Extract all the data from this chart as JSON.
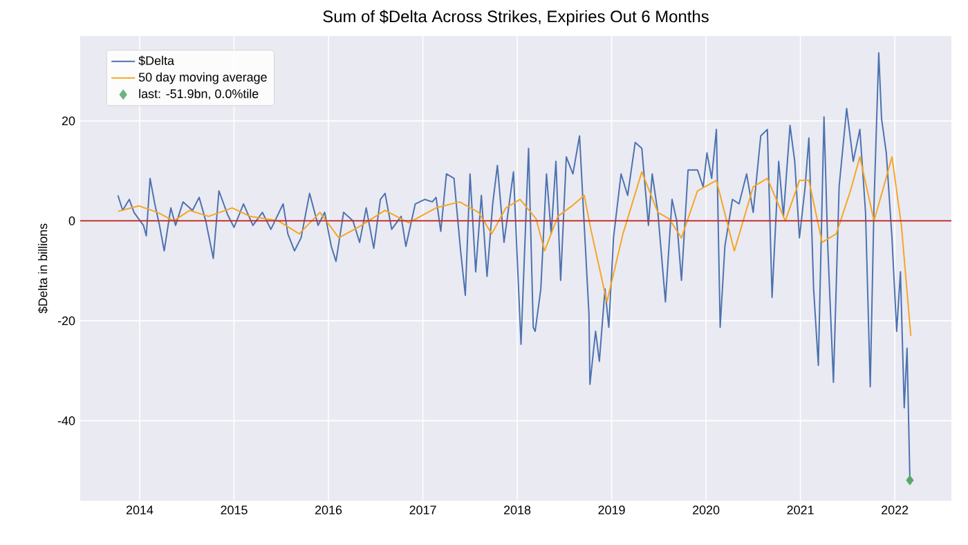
{
  "chart_data": {
    "type": "line",
    "title": "Sum of $Delta Across Strikes, Expiries Out 6 Months",
    "ylabel": "$Delta in billions",
    "xlim": [
      2013.37,
      2022.6
    ],
    "xticks": [
      2014,
      2015,
      2016,
      2017,
      2018,
      2019,
      2020,
      2021,
      2022
    ],
    "ylim": [
      -56,
      37
    ],
    "yticks": [
      -40,
      -20,
      0,
      20
    ],
    "grid": true,
    "legend": "top left",
    "ref_lines": [
      {
        "axis": "y",
        "value": 0,
        "color": "#c03030"
      }
    ],
    "series": [
      {
        "name": "$Delta",
        "color": "#4c72b0",
        "x": [
          2013.77,
          2013.82,
          2013.89,
          2013.94,
          2014.04,
          2014.07,
          2014.11,
          2014.16,
          2014.21,
          2014.26,
          2014.33,
          2014.38,
          2014.46,
          2014.56,
          2014.63,
          2014.7,
          2014.78,
          2014.84,
          2014.93,
          2015.0,
          2015.1,
          2015.2,
          2015.3,
          2015.39,
          2015.52,
          2015.57,
          2015.64,
          2015.71,
          2015.8,
          2015.89,
          2015.96,
          2016.03,
          2016.08,
          2016.16,
          2016.26,
          2016.33,
          2016.4,
          2016.48,
          2016.55,
          2016.6,
          2016.67,
          2016.77,
          2016.82,
          2016.92,
          2017.02,
          2017.1,
          2017.14,
          2017.19,
          2017.25,
          2017.33,
          2017.4,
          2017.45,
          2017.5,
          2017.56,
          2017.62,
          2017.68,
          2017.74,
          2017.79,
          2017.86,
          2017.96,
          2018.04,
          2018.12,
          2018.17,
          2018.19,
          2018.25,
          2018.31,
          2018.36,
          2018.41,
          2018.46,
          2018.52,
          2018.59,
          2018.66,
          2018.71,
          2018.76,
          2018.77,
          2018.83,
          2018.87,
          2018.93,
          2018.97,
          2019.02,
          2019.1,
          2019.17,
          2019.25,
          2019.32,
          2019.39,
          2019.43,
          2019.49,
          2019.57,
          2019.64,
          2019.69,
          2019.74,
          2019.81,
          2019.91,
          2019.97,
          2020.01,
          2020.06,
          2020.11,
          2020.15,
          2020.2,
          2020.28,
          2020.35,
          2020.43,
          2020.5,
          2020.58,
          2020.65,
          2020.7,
          2020.77,
          2020.82,
          2020.89,
          2020.94,
          2020.99,
          2021.05,
          2021.09,
          2021.14,
          2021.19,
          2021.25,
          2021.29,
          2021.35,
          2021.41,
          2021.49,
          2021.56,
          2021.63,
          2021.69,
          2021.74,
          2021.78,
          2021.83,
          2021.86,
          2021.91,
          2021.97,
          2022.02,
          2022.06,
          2022.1,
          2022.13,
          2022.16
        ],
        "values": [
          5.1,
          2.1,
          4.3,
          1.7,
          -0.9,
          -3,
          8.5,
          3.4,
          -0.9,
          -6,
          2.6,
          -0.9,
          3.8,
          2.1,
          4.7,
          0,
          -7.5,
          6,
          1.3,
          -1.3,
          3.4,
          -0.9,
          1.7,
          -1.7,
          3.4,
          -2.6,
          -6,
          -3.4,
          5.5,
          -0.9,
          1.7,
          -5.1,
          -8.1,
          1.7,
          0,
          -4.3,
          2.6,
          -5.5,
          4.3,
          5.5,
          -1.7,
          0.9,
          -5.1,
          3.4,
          4.3,
          3.8,
          4.7,
          -2.1,
          9.4,
          8.5,
          -6,
          -14.9,
          9.4,
          -10.2,
          5.1,
          -11.1,
          3.4,
          11.1,
          -4.3,
          9.8,
          -24.7,
          14.5,
          -21.3,
          -22.1,
          -13.6,
          9.4,
          -2.6,
          11.9,
          -11.9,
          12.8,
          9.4,
          17,
          -0.9,
          -18.7,
          -32.7,
          -22.1,
          -28.1,
          -13.6,
          -21.3,
          -3.4,
          9.4,
          5.1,
          15.7,
          14.5,
          -0.9,
          9.4,
          1.7,
          -16.2,
          4.3,
          0,
          -11.9,
          10.2,
          10.2,
          6.8,
          13.6,
          8.5,
          18.3,
          -21.3,
          -5.1,
          4.3,
          3.4,
          9.4,
          1.7,
          17,
          18.3,
          -15.3,
          11.9,
          0.9,
          19.1,
          11.9,
          -3.4,
          6.8,
          16.6,
          -13.6,
          -28.9,
          20.8,
          -5.1,
          -32.3,
          6.8,
          22.5,
          11.9,
          18.3,
          1.7,
          -33.2,
          3.4,
          33.6,
          20.4,
          13.6,
          -3.4,
          -22.1,
          -10.2,
          -37.4,
          -25.5,
          -51.9
        ]
      },
      {
        "name": "50 day moving average",
        "color": "#f5a623",
        "x": [
          2013.77,
          2013.99,
          2014.19,
          2014.36,
          2014.53,
          2014.73,
          2014.98,
          2015.17,
          2015.47,
          2015.69,
          2015.91,
          2016.11,
          2016.35,
          2016.6,
          2016.85,
          2017.14,
          2017.39,
          2017.59,
          2017.73,
          2017.88,
          2018.03,
          2018.2,
          2018.29,
          2018.43,
          2018.58,
          2018.71,
          2018.78,
          2018.95,
          2019.12,
          2019.32,
          2019.49,
          2019.61,
          2019.74,
          2019.91,
          2020.11,
          2020.3,
          2020.5,
          2020.65,
          2020.84,
          2020.99,
          2021.09,
          2021.23,
          2021.38,
          2021.53,
          2021.63,
          2021.78,
          2021.87,
          2021.97,
          2022.07,
          2022.17
        ],
        "values": [
          1.9,
          3,
          1.7,
          0,
          2.1,
          0.9,
          2.6,
          0.9,
          0,
          -2.6,
          1.7,
          -3.4,
          -0.9,
          2.1,
          -0.4,
          2.6,
          3.8,
          1.7,
          -2.6,
          2.6,
          4.3,
          0.4,
          -6,
          0.9,
          3,
          5.1,
          -1.7,
          -16.2,
          -2.6,
          9.8,
          1.7,
          0.4,
          -3.4,
          6,
          8.1,
          -6,
          6.8,
          8.5,
          0,
          8.1,
          8.1,
          -4.3,
          -2.6,
          6,
          12.8,
          0,
          6,
          12.8,
          -0.9,
          -23
        ]
      },
      {
        "name": "last: -51.9bn, 0.0%tile",
        "type": "scatter",
        "marker": "diamond",
        "color": "#55a868",
        "x": [
          2022.16
        ],
        "values": [
          -51.9
        ]
      }
    ]
  }
}
